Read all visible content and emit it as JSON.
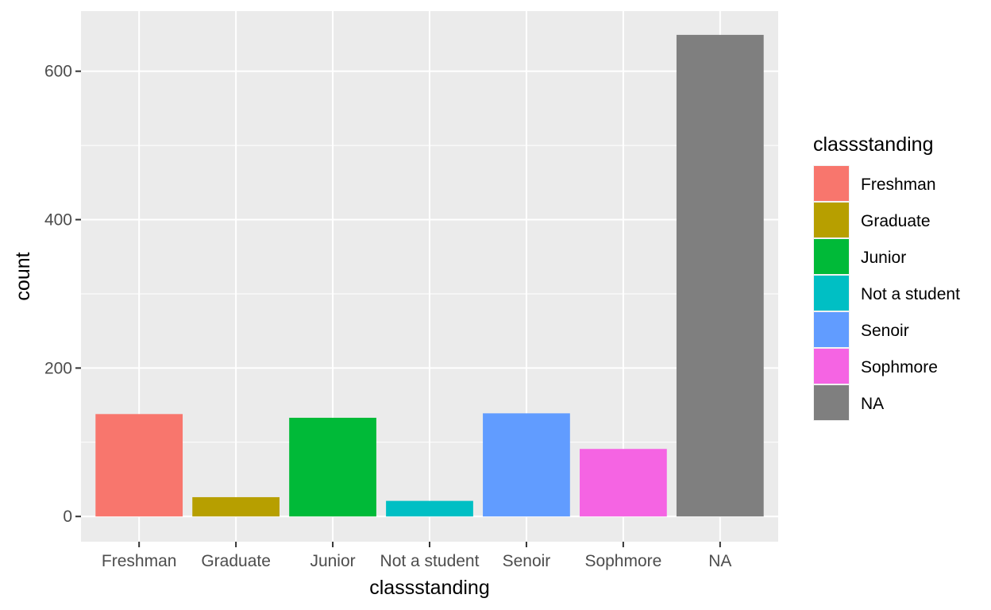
{
  "chart_data": {
    "type": "bar",
    "categories": [
      "Freshman",
      "Graduate",
      "Junior",
      "Not a student",
      "Senoir",
      "Sophmore",
      "NA"
    ],
    "values": [
      138,
      26,
      133,
      21,
      139,
      91,
      649
    ],
    "colors": [
      "#F8766D",
      "#B79F00",
      "#00BA38",
      "#00BFC4",
      "#619CFF",
      "#F564E3",
      "#7F7F7F"
    ],
    "title": "",
    "xlabel": "classstanding",
    "ylabel": "count",
    "ylim": [
      -34,
      681
    ],
    "yticks": [
      0,
      200,
      400,
      600
    ],
    "ytick_labels": [
      "0",
      "200",
      "400",
      "600"
    ],
    "legend": {
      "title": "classstanding",
      "entries": [
        "Freshman",
        "Graduate",
        "Junior",
        "Not a student",
        "Senoir",
        "Sophmore",
        "NA"
      ],
      "placement": "right"
    },
    "grid": true,
    "panel_background": "#EBEBEB",
    "grid_color": "#FFFFFF"
  }
}
